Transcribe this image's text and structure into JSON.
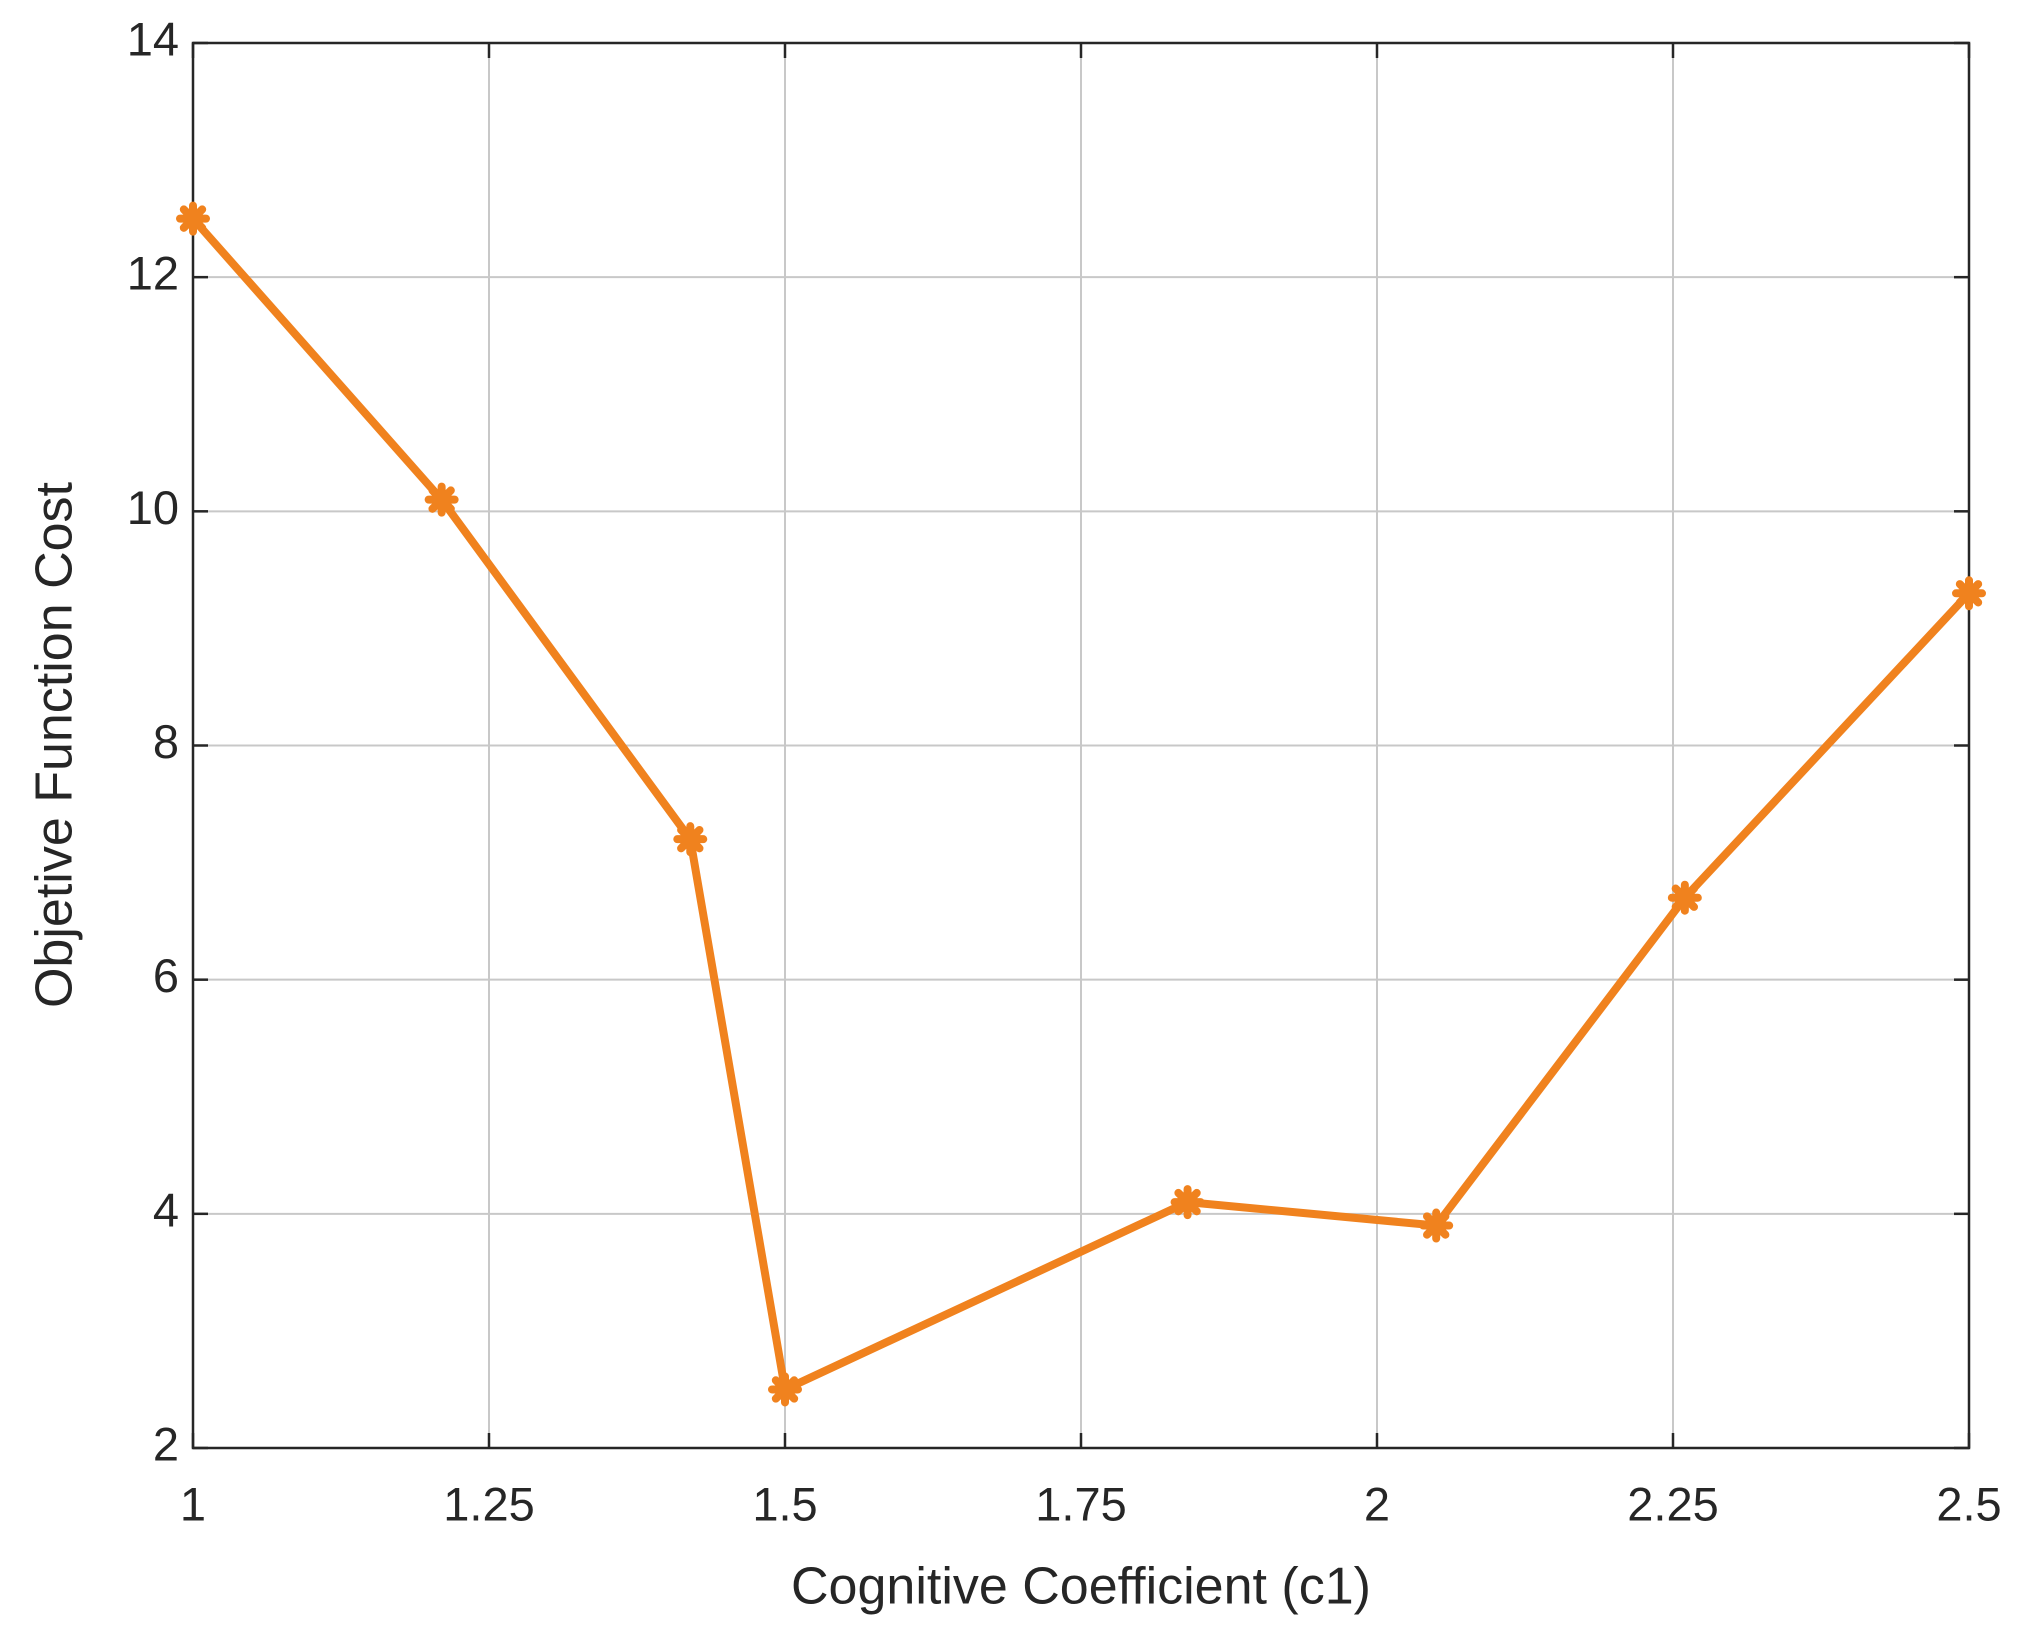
{
  "chart_data": {
    "type": "line",
    "x_label": "Cognitive Coefficient (c1)",
    "y_label": "Objetive Function Cost",
    "x": [
      1.0,
      1.21,
      1.42,
      1.5,
      1.84,
      2.05,
      2.26,
      2.5
    ],
    "values": [
      12.5,
      10.1,
      7.2,
      2.5,
      4.1,
      3.9,
      6.7,
      9.3
    ],
    "color": "#f0821e",
    "xlim": [
      1,
      2.5
    ],
    "xticks": [
      1,
      1.25,
      1.5,
      1.75,
      2,
      2.25,
      2.5
    ],
    "ylim": [
      2,
      14
    ],
    "yticks": [
      2,
      4,
      6,
      8,
      10,
      12,
      14
    ],
    "grid": true
  }
}
